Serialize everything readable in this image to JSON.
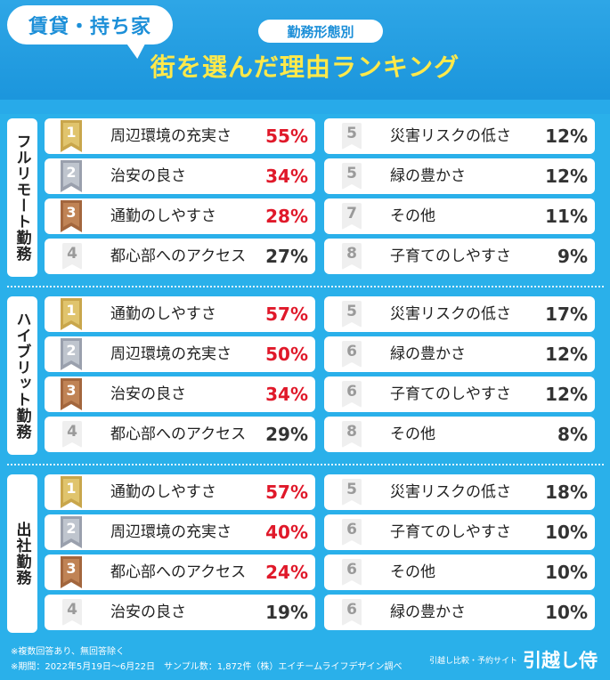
{
  "header": {
    "tag": "賃貸・持ち家",
    "subtitle": "勤務形態別",
    "title": "街を選んだ理由ランキング"
  },
  "colors": {
    "gold": "#c9a64b",
    "silver": "#9aa0ad",
    "bronze": "#a3663d",
    "highlight": "#e0192a",
    "background": "#2ab0ea",
    "title": "#ffe94a"
  },
  "chart_data": {
    "type": "table",
    "groups": [
      {
        "name": "フルリモート勤務",
        "items": [
          {
            "rank": "1",
            "label": "周辺環境の充実さ",
            "value": "55%"
          },
          {
            "rank": "2",
            "label": "治安の良さ",
            "value": "34%"
          },
          {
            "rank": "3",
            "label": "通勤のしやすさ",
            "value": "28%"
          },
          {
            "rank": "4",
            "label": "都心部へのアクセス",
            "value": "27%"
          },
          {
            "rank": "5",
            "label": "災害リスクの低さ",
            "value": "12%"
          },
          {
            "rank": "5",
            "label": "緑の豊かさ",
            "value": "12%"
          },
          {
            "rank": "7",
            "label": "その他",
            "value": "11%"
          },
          {
            "rank": "8",
            "label": "子育てのしやすさ",
            "value": "9%"
          }
        ]
      },
      {
        "name": "ハイブリット勤務",
        "items": [
          {
            "rank": "1",
            "label": "通勤のしやすさ",
            "value": "57%"
          },
          {
            "rank": "2",
            "label": "周辺環境の充実さ",
            "value": "50%"
          },
          {
            "rank": "3",
            "label": "治安の良さ",
            "value": "34%"
          },
          {
            "rank": "4",
            "label": "都心部へのアクセス",
            "value": "29%"
          },
          {
            "rank": "5",
            "label": "災害リスクの低さ",
            "value": "17%"
          },
          {
            "rank": "6",
            "label": "緑の豊かさ",
            "value": "12%"
          },
          {
            "rank": "6",
            "label": "子育てのしやすさ",
            "value": "12%"
          },
          {
            "rank": "8",
            "label": "その他",
            "value": "8%"
          }
        ]
      },
      {
        "name": "出社勤務",
        "items": [
          {
            "rank": "1",
            "label": "通勤のしやすさ",
            "value": "57%"
          },
          {
            "rank": "2",
            "label": "周辺環境の充実さ",
            "value": "40%"
          },
          {
            "rank": "3",
            "label": "都心部へのアクセス",
            "value": "24%"
          },
          {
            "rank": "4",
            "label": "治安の良さ",
            "value": "19%"
          },
          {
            "rank": "5",
            "label": "災害リスクの低さ",
            "value": "18%"
          },
          {
            "rank": "6",
            "label": "子育てのしやすさ",
            "value": "10%"
          },
          {
            "rank": "6",
            "label": "その他",
            "value": "10%"
          },
          {
            "rank": "6",
            "label": "緑の豊かさ",
            "value": "10%"
          }
        ]
      }
    ]
  },
  "footer": {
    "note1": "※複数回答あり、無回答除く",
    "note2": "※期間：2022年5月19日〜6月22日　サンプル数：1,872件（株）エイチームライフデザイン調べ",
    "brand_small": "引越し比較・予約サイト",
    "brand_name": "引越し侍"
  }
}
